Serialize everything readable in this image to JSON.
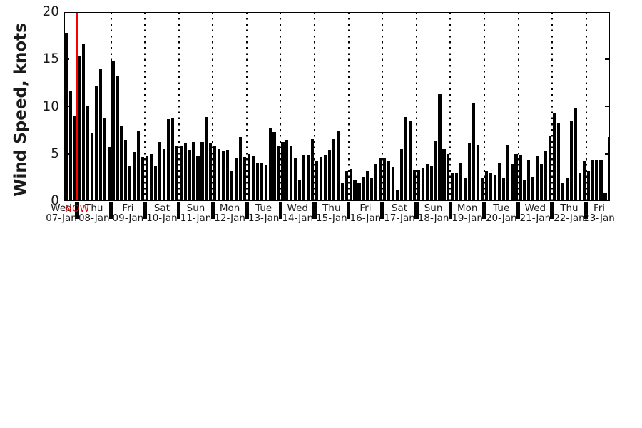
{
  "chart_data": {
    "type": "bar",
    "title": "",
    "ylabel": "Wind Speed, knots",
    "xlabel": "",
    "ylim": [
      0,
      20
    ],
    "yticks": [
      "0",
      "5",
      "10",
      "15",
      "20"
    ],
    "unit": "knots",
    "bar_color": "#000000",
    "text_color": "#1a1a1a",
    "grid": "vertical dotted lines at each day boundary",
    "legend": "none",
    "bars_per_day": 8,
    "now_marker": {
      "label": "NOW",
      "color": "#ff0000",
      "position": "boundary between 07-Jan and 08-Jan"
    },
    "days": [
      {
        "day": "Wed",
        "date": "07-Jan",
        "values": [
          17.8,
          11.7,
          9.0
        ]
      },
      {
        "day": "Thu",
        "date": "08-Jan",
        "values": [
          15.4,
          16.6,
          10.1,
          7.2,
          12.2,
          14.0,
          8.8,
          5.7
        ]
      },
      {
        "day": "Fri",
        "date": "09-Jan",
        "values": [
          14.8,
          13.3,
          7.9,
          6.5,
          3.7,
          5.2,
          7.4,
          4.7
        ]
      },
      {
        "day": "Sat",
        "date": "10-Jan",
        "values": [
          4.8,
          5.0,
          3.7,
          6.3,
          5.5,
          8.7,
          8.8,
          5.9
        ]
      },
      {
        "day": "Sun",
        "date": "11-Jan",
        "values": [
          5.9,
          6.1,
          5.4,
          6.3,
          4.8,
          6.3,
          8.9,
          6.1
        ]
      },
      {
        "day": "Mon",
        "date": "12-Jan",
        "values": [
          5.8,
          5.5,
          5.3,
          5.4,
          3.2,
          4.6,
          6.8,
          4.7
        ]
      },
      {
        "day": "Tue",
        "date": "13-Jan",
        "values": [
          5.0,
          4.8,
          4.0,
          4.1,
          3.8,
          7.7,
          7.3,
          5.8
        ]
      },
      {
        "day": "Wed",
        "date": "14-Jan",
        "values": [
          6.3,
          6.5,
          5.8,
          4.6,
          2.3,
          4.9,
          4.9,
          6.6
        ]
      },
      {
        "day": "Thu",
        "date": "15-Jan",
        "values": [
          4.3,
          4.7,
          4.9,
          5.4,
          6.6,
          7.4,
          2.0,
          3.2
        ]
      },
      {
        "day": "Fri",
        "date": "16-Jan",
        "values": [
          3.4,
          2.3,
          2.0,
          2.6,
          3.2,
          2.4,
          3.9,
          4.5
        ]
      },
      {
        "day": "Sat",
        "date": "17-Jan",
        "values": [
          4.6,
          4.2,
          3.6,
          1.2,
          5.5,
          8.9,
          8.5,
          3.3
        ]
      },
      {
        "day": "Sun",
        "date": "18-Jan",
        "values": [
          3.3,
          3.5,
          3.9,
          3.7,
          6.4,
          11.3,
          5.5,
          5.0
        ]
      },
      {
        "day": "Mon",
        "date": "19-Jan",
        "values": [
          3.0,
          3.0,
          4.0,
          2.4,
          6.1,
          10.4,
          6.0,
          2.4
        ]
      },
      {
        "day": "Tue",
        "date": "20-Jan",
        "values": [
          3.2,
          3.0,
          2.7,
          4.0,
          2.4,
          6.0,
          3.9,
          5.0
        ]
      },
      {
        "day": "Wed",
        "date": "21-Jan",
        "values": [
          4.9,
          2.3,
          4.4,
          2.6,
          4.8,
          3.9,
          5.3,
          6.9
        ]
      },
      {
        "day": "Thu",
        "date": "22-Jan",
        "values": [
          9.3,
          8.3,
          2.0,
          2.4,
          8.5,
          9.8,
          3.0,
          4.3
        ]
      },
      {
        "day": "Fri",
        "date": "23-Jan",
        "values": [
          3.2,
          4.4,
          4.4,
          4.4,
          0.9,
          6.8
        ]
      }
    ]
  }
}
